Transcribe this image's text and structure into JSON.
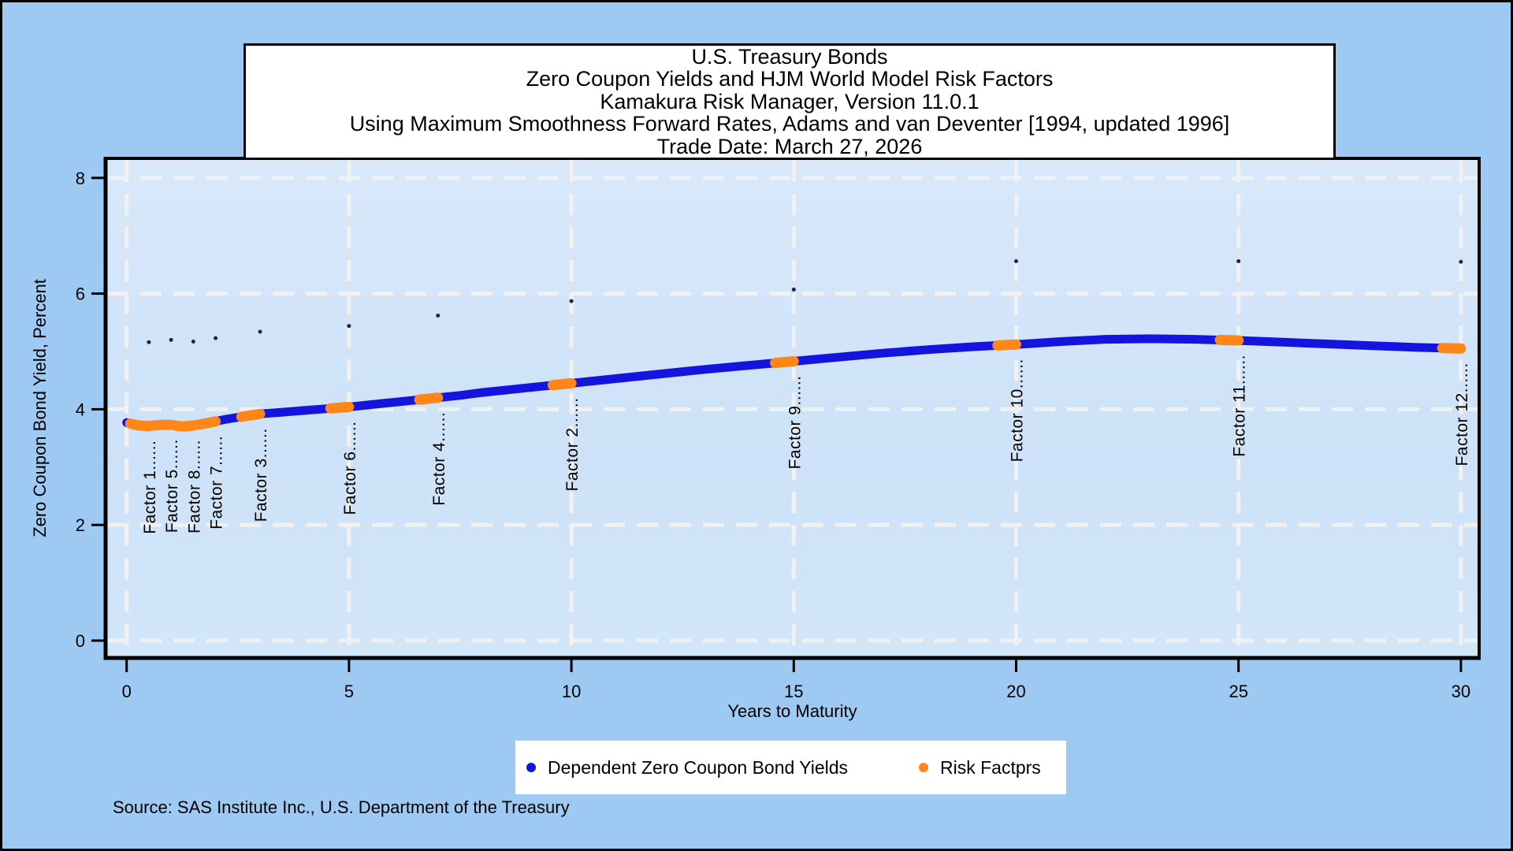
{
  "title_box": {
    "lines": [
      "U.S. Treasury Bonds",
      "Zero Coupon Yields and HJM World Model Risk Factors",
      "Kamakura Risk Manager, Version 11.0.1",
      "Using Maximum Smoothness Forward Rates, Adams and van Deventer [1994, updated 1996]",
      "Trade Date: March 27, 2026"
    ]
  },
  "legend": {
    "items": [
      {
        "label": "Dependent Zero Coupon Bond Yields",
        "marker_color": "#1414DF"
      },
      {
        "label": "Risk Factprs",
        "marker_color": "#FF8617"
      }
    ]
  },
  "source_note": "Source: SAS Institute Inc., U.S. Department of the Treasury",
  "chart_data": {
    "type": "line",
    "x_axis": {
      "label": "Years to Maturity",
      "ticks": [
        0,
        5,
        10,
        15,
        20,
        25,
        30
      ],
      "range": [
        -0.45,
        30.4
      ],
      "grid": true
    },
    "y_axis": {
      "label": "Zero Coupon Bond Yield, Percent",
      "ticks": [
        0,
        2,
        4,
        6,
        8
      ],
      "range": [
        -0.3,
        8.35
      ],
      "grid": true
    },
    "colors": {
      "curve_blue": "#1414DF",
      "risk_factor_orange": "#FF8617",
      "outer_background": "#9DC9F2",
      "wall_top": "#D9E8FB",
      "wall_bottom": "#CDE2F8",
      "gridline": "#F1F1F1",
      "frame": "#000000",
      "small_dot": "#22223A"
    },
    "leader_dots": "......",
    "yield_curve": {
      "name": "Dependent Zero Coupon Bond Yields",
      "points": [
        [
          0,
          3.77
        ],
        [
          0.25,
          3.72
        ],
        [
          0.5,
          3.71
        ],
        [
          0.75,
          3.73
        ],
        [
          1.0,
          3.73
        ],
        [
          1.25,
          3.7
        ],
        [
          1.5,
          3.72
        ],
        [
          1.75,
          3.75
        ],
        [
          2.0,
          3.79
        ],
        [
          2.25,
          3.83
        ],
        [
          2.5,
          3.86
        ],
        [
          2.75,
          3.89
        ],
        [
          3.0,
          3.92
        ],
        [
          3.5,
          3.95
        ],
        [
          4.0,
          3.98
        ],
        [
          4.5,
          4.01
        ],
        [
          5.0,
          4.04
        ],
        [
          5.5,
          4.08
        ],
        [
          6.0,
          4.12
        ],
        [
          6.5,
          4.16
        ],
        [
          7.0,
          4.2
        ],
        [
          7.5,
          4.24
        ],
        [
          8.0,
          4.29
        ],
        [
          8.5,
          4.33
        ],
        [
          9.0,
          4.37
        ],
        [
          9.5,
          4.41
        ],
        [
          10.0,
          4.45
        ],
        [
          11.0,
          4.53
        ],
        [
          12.0,
          4.61
        ],
        [
          13.0,
          4.69
        ],
        [
          14.0,
          4.76
        ],
        [
          15.0,
          4.83
        ],
        [
          16.0,
          4.9
        ],
        [
          17.0,
          4.97
        ],
        [
          18.0,
          5.03
        ],
        [
          19.0,
          5.08
        ],
        [
          20.0,
          5.12
        ],
        [
          21.0,
          5.17
        ],
        [
          22.0,
          5.21
        ],
        [
          23.0,
          5.22
        ],
        [
          24.0,
          5.21
        ],
        [
          25.0,
          5.19
        ],
        [
          26.0,
          5.16
        ],
        [
          27.0,
          5.13
        ],
        [
          28.0,
          5.1
        ],
        [
          29.0,
          5.07
        ],
        [
          30.0,
          5.05
        ]
      ]
    },
    "risk_factors": {
      "name": "Risk Factprs",
      "items": [
        {
          "label": "Factor 1",
          "maturity_years": 0.5,
          "yield_percent": 3.71
        },
        {
          "label": "Factor 5",
          "maturity_years": 1.0,
          "yield_percent": 3.73
        },
        {
          "label": "Factor 8",
          "maturity_years": 1.5,
          "yield_percent": 3.72
        },
        {
          "label": "Factor 7",
          "maturity_years": 2.0,
          "yield_percent": 3.79
        },
        {
          "label": "Factor 3",
          "maturity_years": 3.0,
          "yield_percent": 3.92
        },
        {
          "label": "Factor 6",
          "maturity_years": 5.0,
          "yield_percent": 4.04
        },
        {
          "label": "Factor 4",
          "maturity_years": 7.0,
          "yield_percent": 4.2
        },
        {
          "label": "Factor 2",
          "maturity_years": 10.0,
          "yield_percent": 4.45
        },
        {
          "label": "Factor 9",
          "maturity_years": 15.0,
          "yield_percent": 4.83
        },
        {
          "label": "Factor 10",
          "maturity_years": 20.0,
          "yield_percent": 5.12
        },
        {
          "label": "Factor 11",
          "maturity_years": 25.0,
          "yield_percent": 5.19
        },
        {
          "label": "Factor 12",
          "maturity_years": 30.0,
          "yield_percent": 5.05
        }
      ]
    },
    "small_dots": {
      "points": [
        [
          0.5,
          5.16
        ],
        [
          1.0,
          5.2
        ],
        [
          1.5,
          5.17
        ],
        [
          2.0,
          5.23
        ],
        [
          3.0,
          5.34
        ],
        [
          5.0,
          5.44
        ],
        [
          7.0,
          5.62
        ],
        [
          10.0,
          5.87
        ],
        [
          15.0,
          6.07
        ],
        [
          20.0,
          6.56
        ],
        [
          25.0,
          6.56
        ],
        [
          30.0,
          6.55
        ]
      ]
    }
  }
}
